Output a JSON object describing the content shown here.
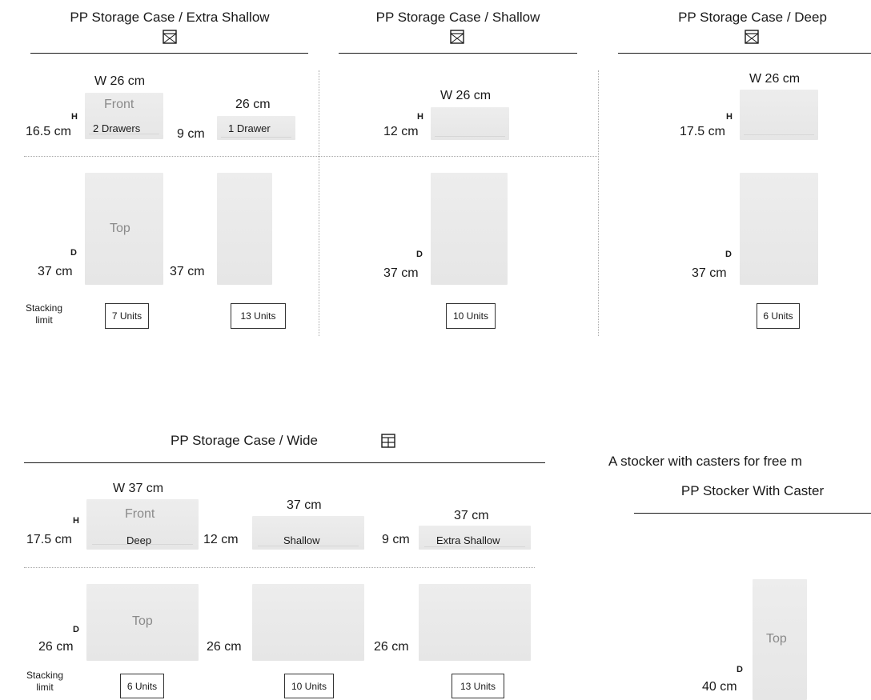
{
  "cases": {
    "extra_shallow": {
      "title": "PP Storage Case / Extra Shallow",
      "icon": "single-drawer-case-icon",
      "front_label": "Front",
      "top_label": "Top",
      "width_label": "W 26 cm",
      "height_letter": "H",
      "height_value": "16.5 cm",
      "depth_letter": "D",
      "depth_value": "37 cm",
      "two_drawer_label": "2 Drawers",
      "one_drawer_width": "26 cm",
      "one_drawer_height": "9 cm",
      "one_drawer_label": "1 Drawer",
      "one_drawer_depth": "37 cm",
      "stacking_label": "Stacking\nlimit",
      "units_2": "7 Units",
      "units_1": "13 Units"
    },
    "shallow": {
      "title": "PP Storage Case / Shallow",
      "icon": "single-drawer-case-icon",
      "width_label": "W 26 cm",
      "height_letter": "H",
      "height_value": "12 cm",
      "depth_letter": "D",
      "depth_value": "37 cm",
      "units": "10 Units"
    },
    "deep": {
      "title": "PP Storage Case / Deep",
      "icon": "single-drawer-case-icon",
      "width_label": "W 26 cm",
      "height_letter": "H",
      "height_value": "17.5 cm",
      "depth_letter": "D",
      "depth_value": "37 cm",
      "units": "6 Units"
    },
    "wide": {
      "title": "PP Storage Case / Wide",
      "icon": "wide-case-grid-icon",
      "width_label": "W 37 cm",
      "front_label": "Front",
      "top_label": "Top",
      "height_letter": "H",
      "deep_height": "17.5 cm",
      "deep_label": "Deep",
      "shallow_height": "12 cm",
      "shallow_width": "37 cm",
      "shallow_label": "Shallow",
      "extra_height": "9 cm",
      "extra_width": "37 cm",
      "extra_label": "Extra Shallow",
      "depth_letter": "D",
      "depth_value": "26 cm",
      "depth_value_2": "26 cm",
      "depth_value_3": "26 cm",
      "stacking_label": "Stacking\nlimit",
      "units_deep": "6 Units",
      "units_shallow": "10 Units",
      "units_extra": "13 Units"
    },
    "stocker": {
      "heading": "A stocker with casters for free m",
      "title": "PP Stocker With Caster",
      "top_label": "Top",
      "depth_letter": "D",
      "depth_value": "40 cm"
    }
  },
  "colors": {
    "panel": "#e9e9e9",
    "rule": "#1a1a1a",
    "dotted": "#aaaaaa",
    "ghost_text": "#8a8a8a"
  }
}
